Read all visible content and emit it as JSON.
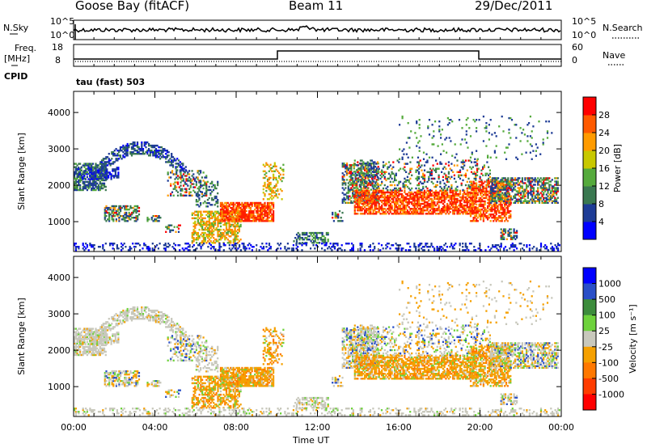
{
  "header": {
    "station": "Goose Bay (fitACF)",
    "beam": "Beam 11",
    "date": "29/Dec/2011"
  },
  "strip_panels": {
    "nsky_label": "N.Sky",
    "nsearch_label": "N.Search",
    "noise_ticks_left": [
      "10^5",
      "10^0"
    ],
    "noise_ticks_right": [
      "10^5",
      "10^0"
    ],
    "freq_label": "Freq.",
    "freq_unit": "[MHz]",
    "freq_ticks": [
      "18",
      "8"
    ],
    "nave_label": "Nave",
    "nave_ticks": [
      "60",
      "0"
    ],
    "cpid_label": "CPID",
    "cpid_value": "tau (fast) 503"
  },
  "colors": {
    "power_scale": [
      "#0000ff",
      "#1e3c96",
      "#3a7850",
      "#55aa3c",
      "#c8c800",
      "#ff9b00",
      "#ff5a00",
      "#ff0000"
    ],
    "velocity_scale": [
      "#0000ff",
      "#2a4fc8",
      "#3c8c3c",
      "#6ed23c",
      "#c8c8bc",
      "#f5a000",
      "#ff7800",
      "#ff3c00",
      "#ff0000"
    ],
    "ground_scatter": "#c8c8bc"
  },
  "chart_data": [
    {
      "type": "heatmap",
      "panel": "power",
      "ylabel": "Slant Range [km]",
      "y_ticks": [
        1000,
        2000,
        3000,
        4000
      ],
      "ylim": [
        180,
        4580
      ],
      "x_ticks": [
        "00:00",
        "04:00",
        "08:00",
        "12:00",
        "16:00",
        "20:00",
        "00:00"
      ],
      "xlim_hours": [
        0,
        24
      ],
      "colorbar_label": "Power [dB]",
      "colorbar_ticks": [
        "4",
        "8",
        "12",
        "16",
        "20",
        "24",
        "28"
      ],
      "colorbar_range": [
        0,
        32
      ]
    },
    {
      "type": "heatmap",
      "panel": "velocity",
      "ylabel": "Slant Range [km]",
      "y_ticks": [
        1000,
        2000,
        3000,
        4000
      ],
      "ylim": [
        180,
        4580
      ],
      "x_ticks": [
        "00:00",
        "04:00",
        "08:00",
        "12:00",
        "16:00",
        "20:00",
        "00:00"
      ],
      "xlabel": "Time UT",
      "colorbar_label": "Velocity [m s⁻¹]",
      "colorbar_ticks": [
        "1000",
        "500",
        "100",
        "25",
        "-25",
        "-100",
        "-500",
        "-1000"
      ]
    }
  ]
}
